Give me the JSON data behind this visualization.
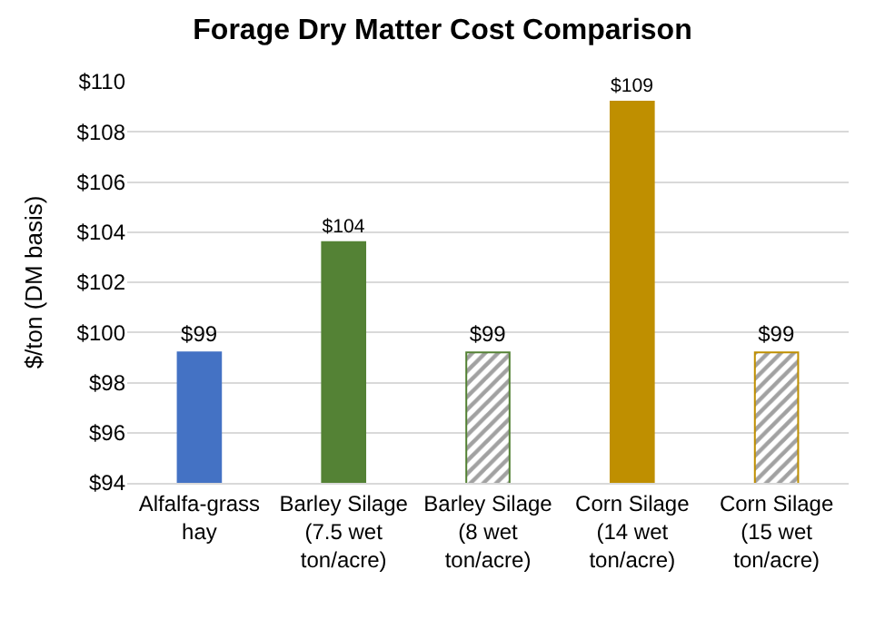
{
  "chart_data": {
    "type": "bar",
    "title": "Forage Dry Matter Cost Comparison",
    "ylabel": "$/ton (DM basis)",
    "categories": [
      "Alfalfa-grass\nhay",
      "Barley Silage\n(7.5 wet\nton/acre)",
      "Barley Silage\n(8 wet\nton/acre)",
      "Corn Silage\n(14 wet\nton/acre)",
      "Corn Silage\n(15 wet\nton/acre)"
    ],
    "values": [
      99.2,
      103.6,
      99.2,
      109.2,
      99.2
    ],
    "value_labels": [
      "$99",
      "$104",
      "$99",
      "$109",
      "$99"
    ],
    "colors": [
      "#4472c4",
      "#548235",
      "#548235",
      "#bf8f00",
      "#bf8f00"
    ],
    "ylim": [
      94,
      110
    ],
    "yticks": [
      {
        "value": 94,
        "label": "$94"
      },
      {
        "value": 96,
        "label": "$96"
      },
      {
        "value": 98,
        "label": "$98"
      },
      {
        "value": 100,
        "label": "$100"
      },
      {
        "value": 102,
        "label": "$102"
      },
      {
        "value": 104,
        "label": "$104"
      },
      {
        "value": 106,
        "label": "$106"
      },
      {
        "value": 108,
        "label": "$108"
      },
      {
        "value": 110,
        "label": "$110"
      }
    ],
    "grid": "y"
  }
}
